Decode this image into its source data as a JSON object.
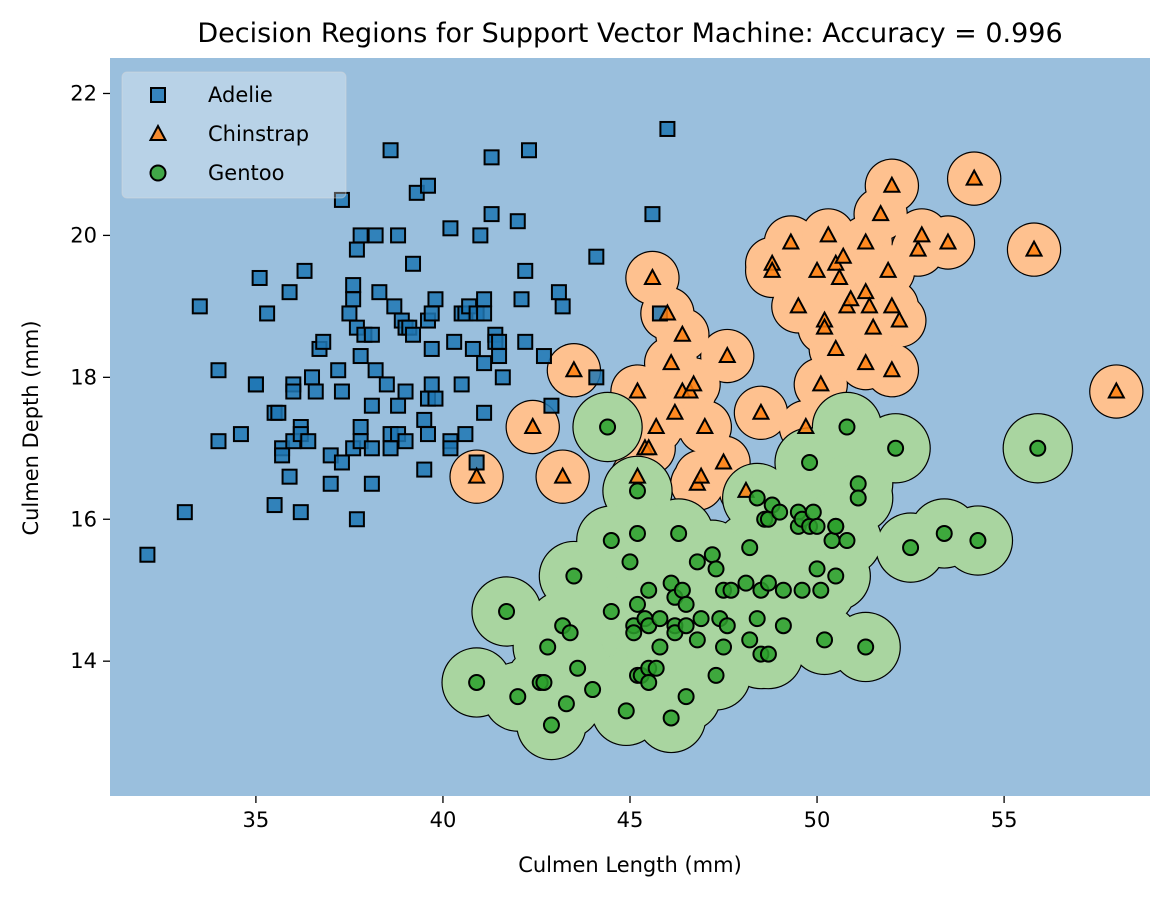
{
  "chart_data": {
    "type": "scatter",
    "title": "Decision Regions for Support Vector Machine: Accuracy = 0.996",
    "xlabel": "Culmen Length (mm)",
    "ylabel": "Culmen Depth (mm)",
    "xlim": [
      31.1,
      58.9
    ],
    "ylim": [
      12.1,
      22.5
    ],
    "xticks": [
      35,
      40,
      45,
      50,
      55
    ],
    "yticks": [
      14,
      16,
      18,
      20,
      22
    ],
    "grid": false,
    "legend_position": "top-left",
    "colors": {
      "background_region": "#9abfdd",
      "chinstrap_region": "#fec18f",
      "gentoo_region": "#a9d5a0",
      "adelie": "#1f77b4",
      "chinstrap": "#ff7f0e",
      "gentoo": "#2ca02c",
      "marker_edge": "#000000"
    },
    "series": [
      {
        "name": "Adelie",
        "marker": "square",
        "points": [
          [
            32.1,
            15.5
          ],
          [
            33.1,
            16.1
          ],
          [
            33.5,
            19.0
          ],
          [
            34.0,
            18.1
          ],
          [
            34.0,
            17.1
          ],
          [
            34.6,
            17.2
          ],
          [
            35.0,
            17.9
          ],
          [
            35.0,
            17.9
          ],
          [
            35.1,
            19.4
          ],
          [
            35.3,
            18.9
          ],
          [
            35.5,
            16.2
          ],
          [
            35.5,
            17.5
          ],
          [
            35.6,
            17.5
          ],
          [
            35.7,
            17.0
          ],
          [
            35.7,
            16.9
          ],
          [
            35.9,
            19.2
          ],
          [
            35.9,
            16.6
          ],
          [
            36.0,
            17.9
          ],
          [
            36.0,
            17.1
          ],
          [
            36.0,
            17.8
          ],
          [
            36.2,
            16.1
          ],
          [
            36.2,
            17.3
          ],
          [
            36.2,
            17.2
          ],
          [
            36.3,
            19.5
          ],
          [
            36.4,
            17.1
          ],
          [
            36.5,
            18.0
          ],
          [
            36.6,
            17.8
          ],
          [
            36.7,
            18.4
          ],
          [
            36.8,
            18.5
          ],
          [
            37.0,
            16.9
          ],
          [
            37.0,
            16.5
          ],
          [
            37.2,
            18.1
          ],
          [
            37.3,
            20.5
          ],
          [
            37.3,
            17.8
          ],
          [
            37.3,
            16.8
          ],
          [
            37.5,
            18.9
          ],
          [
            37.6,
            19.3
          ],
          [
            37.6,
            19.1
          ],
          [
            37.6,
            17.0
          ],
          [
            37.7,
            19.8
          ],
          [
            37.7,
            18.7
          ],
          [
            37.7,
            16.0
          ],
          [
            37.8,
            20.0
          ],
          [
            37.8,
            18.3
          ],
          [
            37.8,
            17.3
          ],
          [
            37.8,
            17.1
          ],
          [
            37.9,
            18.6
          ],
          [
            38.1,
            18.6
          ],
          [
            38.1,
            17.6
          ],
          [
            38.1,
            17.0
          ],
          [
            38.1,
            16.5
          ],
          [
            38.2,
            20.0
          ],
          [
            38.2,
            18.1
          ],
          [
            38.3,
            19.2
          ],
          [
            38.5,
            17.9
          ],
          [
            38.6,
            21.2
          ],
          [
            38.6,
            17.2
          ],
          [
            38.6,
            17.0
          ],
          [
            38.7,
            19.0
          ],
          [
            38.8,
            20.0
          ],
          [
            38.8,
            17.6
          ],
          [
            38.8,
            17.2
          ],
          [
            38.9,
            18.8
          ],
          [
            39.0,
            18.7
          ],
          [
            39.0,
            17.8
          ],
          [
            39.0,
            17.1
          ],
          [
            39.1,
            18.7
          ],
          [
            39.2,
            19.6
          ],
          [
            39.2,
            18.6
          ],
          [
            39.3,
            20.6
          ],
          [
            39.5,
            17.4
          ],
          [
            39.5,
            16.7
          ],
          [
            39.6,
            20.7
          ],
          [
            39.6,
            18.8
          ],
          [
            39.6,
            17.7
          ],
          [
            39.6,
            17.2
          ],
          [
            39.7,
            18.9
          ],
          [
            39.7,
            18.4
          ],
          [
            39.7,
            17.9
          ],
          [
            39.8,
            19.1
          ],
          [
            39.8,
            17.7
          ],
          [
            40.2,
            20.1
          ],
          [
            40.2,
            17.1
          ],
          [
            40.2,
            17.0
          ],
          [
            40.3,
            18.5
          ],
          [
            40.5,
            18.9
          ],
          [
            40.5,
            17.9
          ],
          [
            40.6,
            17.2
          ],
          [
            40.6,
            18.9
          ],
          [
            40.7,
            19.0
          ],
          [
            40.8,
            18.4
          ],
          [
            40.9,
            18.9
          ],
          [
            40.9,
            16.8
          ],
          [
            41.0,
            20.0
          ],
          [
            41.1,
            19.1
          ],
          [
            41.1,
            18.2
          ],
          [
            41.1,
            17.5
          ],
          [
            41.1,
            18.9
          ],
          [
            41.3,
            21.1
          ],
          [
            41.3,
            20.3
          ],
          [
            41.4,
            18.6
          ],
          [
            41.4,
            18.5
          ],
          [
            41.5,
            18.5
          ],
          [
            41.5,
            18.3
          ],
          [
            41.6,
            18.0
          ],
          [
            42.0,
            20.2
          ],
          [
            42.1,
            19.1
          ],
          [
            42.2,
            19.5
          ],
          [
            42.2,
            18.5
          ],
          [
            42.3,
            21.2
          ],
          [
            42.7,
            18.3
          ],
          [
            42.9,
            17.6
          ],
          [
            43.2,
            19.0
          ],
          [
            43.1,
            19.2
          ],
          [
            44.1,
            19.7
          ],
          [
            44.1,
            18.0
          ],
          [
            45.6,
            20.3
          ],
          [
            46.0,
            21.5
          ],
          [
            45.8,
            18.9
          ]
        ]
      },
      {
        "name": "Chinstrap",
        "marker": "triangle",
        "points": [
          [
            40.9,
            16.6
          ],
          [
            42.4,
            17.3
          ],
          [
            43.2,
            16.6
          ],
          [
            43.5,
            18.1
          ],
          [
            45.2,
            17.8
          ],
          [
            45.2,
            16.6
          ],
          [
            45.4,
            17.0
          ],
          [
            45.5,
            17.0
          ],
          [
            45.6,
            19.4
          ],
          [
            45.7,
            17.3
          ],
          [
            46.0,
            18.9
          ],
          [
            46.1,
            18.2
          ],
          [
            46.2,
            17.5
          ],
          [
            46.4,
            17.8
          ],
          [
            46.4,
            18.6
          ],
          [
            46.6,
            17.8
          ],
          [
            46.7,
            17.9
          ],
          [
            46.8,
            16.5
          ],
          [
            46.9,
            16.6
          ],
          [
            47.0,
            17.3
          ],
          [
            47.5,
            16.8
          ],
          [
            47.6,
            18.3
          ],
          [
            48.1,
            16.4
          ],
          [
            48.5,
            17.5
          ],
          [
            48.8,
            19.6
          ],
          [
            48.8,
            19.5
          ],
          [
            49.3,
            19.9
          ],
          [
            49.5,
            19.0
          ],
          [
            49.7,
            17.3
          ],
          [
            50.0,
            19.5
          ],
          [
            50.1,
            17.9
          ],
          [
            50.2,
            18.8
          ],
          [
            50.2,
            18.7
          ],
          [
            50.3,
            20.0
          ],
          [
            50.5,
            19.6
          ],
          [
            50.5,
            18.4
          ],
          [
            50.6,
            19.4
          ],
          [
            50.7,
            19.7
          ],
          [
            50.8,
            19.0
          ],
          [
            50.9,
            19.1
          ],
          [
            51.3,
            19.9
          ],
          [
            51.3,
            19.2
          ],
          [
            51.3,
            18.2
          ],
          [
            51.4,
            19.0
          ],
          [
            51.5,
            18.7
          ],
          [
            51.7,
            20.3
          ],
          [
            51.9,
            19.5
          ],
          [
            52.0,
            19.0
          ],
          [
            52.0,
            18.1
          ],
          [
            52.0,
            20.7
          ],
          [
            52.2,
            18.8
          ],
          [
            52.7,
            19.8
          ],
          [
            52.8,
            20.0
          ],
          [
            53.5,
            19.9
          ],
          [
            54.2,
            20.8
          ],
          [
            55.8,
            19.8
          ],
          [
            58.0,
            17.8
          ]
        ]
      },
      {
        "name": "Gentoo",
        "marker": "circle",
        "points": [
          [
            40.9,
            13.7
          ],
          [
            41.7,
            14.7
          ],
          [
            42.0,
            13.5
          ],
          [
            42.6,
            13.7
          ],
          [
            42.7,
            13.7
          ],
          [
            42.8,
            14.2
          ],
          [
            42.9,
            13.1
          ],
          [
            43.2,
            14.5
          ],
          [
            43.3,
            13.4
          ],
          [
            43.4,
            14.4
          ],
          [
            43.5,
            15.2
          ],
          [
            43.6,
            13.9
          ],
          [
            44.0,
            13.6
          ],
          [
            44.4,
            17.3
          ],
          [
            44.5,
            15.7
          ],
          [
            44.5,
            14.7
          ],
          [
            44.9,
            13.3
          ],
          [
            45.0,
            15.4
          ],
          [
            45.1,
            14.5
          ],
          [
            45.1,
            14.4
          ],
          [
            45.2,
            16.4
          ],
          [
            45.2,
            15.8
          ],
          [
            45.2,
            14.8
          ],
          [
            45.2,
            13.8
          ],
          [
            45.3,
            13.8
          ],
          [
            45.4,
            14.6
          ],
          [
            45.5,
            15.0
          ],
          [
            45.5,
            14.5
          ],
          [
            45.5,
            13.9
          ],
          [
            45.5,
            13.7
          ],
          [
            45.7,
            13.9
          ],
          [
            45.8,
            14.6
          ],
          [
            45.8,
            14.2
          ],
          [
            46.1,
            15.1
          ],
          [
            46.1,
            13.2
          ],
          [
            46.2,
            14.9
          ],
          [
            46.2,
            14.5
          ],
          [
            46.2,
            14.4
          ],
          [
            46.3,
            15.8
          ],
          [
            46.4,
            15.0
          ],
          [
            46.5,
            14.8
          ],
          [
            46.5,
            14.5
          ],
          [
            46.5,
            13.5
          ],
          [
            46.8,
            15.4
          ],
          [
            46.8,
            14.3
          ],
          [
            46.9,
            14.6
          ],
          [
            47.2,
            15.5
          ],
          [
            47.3,
            15.3
          ],
          [
            47.3,
            13.8
          ],
          [
            47.4,
            14.6
          ],
          [
            47.5,
            15.0
          ],
          [
            47.5,
            14.2
          ],
          [
            47.7,
            15.0
          ],
          [
            47.6,
            14.5
          ],
          [
            48.1,
            15.1
          ],
          [
            48.2,
            15.6
          ],
          [
            48.2,
            14.3
          ],
          [
            48.4,
            16.3
          ],
          [
            48.4,
            14.6
          ],
          [
            48.5,
            15.0
          ],
          [
            48.5,
            14.1
          ],
          [
            48.6,
            16.0
          ],
          [
            48.7,
            16.0
          ],
          [
            48.7,
            15.1
          ],
          [
            48.7,
            14.1
          ],
          [
            48.8,
            16.2
          ],
          [
            49.0,
            16.1
          ],
          [
            49.1,
            15.0
          ],
          [
            49.1,
            14.5
          ],
          [
            49.5,
            16.1
          ],
          [
            49.5,
            15.9
          ],
          [
            49.6,
            16.0
          ],
          [
            49.6,
            15.0
          ],
          [
            49.8,
            16.8
          ],
          [
            49.8,
            15.9
          ],
          [
            49.9,
            16.1
          ],
          [
            50.0,
            15.9
          ],
          [
            50.0,
            15.3
          ],
          [
            50.1,
            15.0
          ],
          [
            50.2,
            14.3
          ],
          [
            50.4,
            15.7
          ],
          [
            50.5,
            15.9
          ],
          [
            50.5,
            15.9
          ],
          [
            50.5,
            15.2
          ],
          [
            50.8,
            17.3
          ],
          [
            50.8,
            15.7
          ],
          [
            51.1,
            16.5
          ],
          [
            51.1,
            16.3
          ],
          [
            51.3,
            14.2
          ],
          [
            52.1,
            17.0
          ],
          [
            52.5,
            15.6
          ],
          [
            53.4,
            15.8
          ],
          [
            54.3,
            15.7
          ],
          [
            55.9,
            17.0
          ]
        ]
      }
    ]
  }
}
